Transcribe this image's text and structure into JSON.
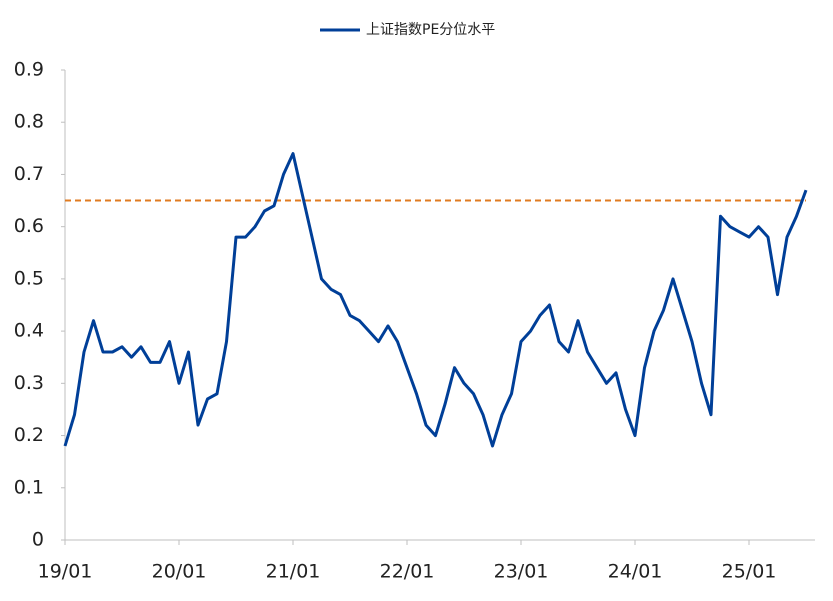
{
  "chart_data": {
    "type": "line",
    "x": [
      "19/01",
      "19/02",
      "19/03",
      "19/04",
      "19/05",
      "19/06",
      "19/07",
      "19/08",
      "19/09",
      "19/10",
      "19/11",
      "19/12",
      "20/01",
      "20/02",
      "20/03",
      "20/04",
      "20/05",
      "20/06",
      "20/07",
      "20/08",
      "20/09",
      "20/10",
      "20/11",
      "20/12",
      "21/01",
      "21/02",
      "21/03",
      "21/04",
      "21/05",
      "21/06",
      "21/07",
      "21/08",
      "21/09",
      "21/10",
      "21/11",
      "21/12",
      "22/01",
      "22/02",
      "22/03",
      "22/04",
      "22/05",
      "22/06",
      "22/07",
      "22/08",
      "22/09",
      "22/10",
      "22/11",
      "22/12",
      "23/01",
      "23/02",
      "23/03",
      "23/04",
      "23/05",
      "23/06",
      "23/07",
      "23/08",
      "23/09",
      "23/10",
      "23/11",
      "23/12",
      "24/01",
      "24/02",
      "24/03",
      "24/04",
      "24/05",
      "24/06",
      "24/07",
      "24/08",
      "24/09",
      "24/10",
      "24/11",
      "24/12",
      "25/01",
      "25/02",
      "25/03",
      "25/04",
      "25/05",
      "25/06",
      "25/07"
    ],
    "series": [
      {
        "name": "上证指数PE分位水平",
        "color": "#003f98",
        "values": [
          0.18,
          0.24,
          0.36,
          0.42,
          0.36,
          0.36,
          0.37,
          0.35,
          0.37,
          0.34,
          0.34,
          0.38,
          0.3,
          0.36,
          0.22,
          0.27,
          0.28,
          0.38,
          0.58,
          0.58,
          0.6,
          0.63,
          0.64,
          0.7,
          0.74,
          0.66,
          0.58,
          0.5,
          0.48,
          0.47,
          0.43,
          0.42,
          0.4,
          0.38,
          0.41,
          0.38,
          0.33,
          0.28,
          0.22,
          0.2,
          0.26,
          0.33,
          0.3,
          0.28,
          0.24,
          0.18,
          0.24,
          0.28,
          0.38,
          0.4,
          0.43,
          0.45,
          0.38,
          0.36,
          0.42,
          0.36,
          0.33,
          0.3,
          0.32,
          0.25,
          0.2,
          0.33,
          0.4,
          0.44,
          0.5,
          0.44,
          0.38,
          0.3,
          0.24,
          0.62,
          0.6,
          0.59,
          0.58,
          0.6,
          0.58,
          0.47,
          0.58,
          0.62,
          0.67
        ]
      }
    ],
    "reference_line": {
      "value": 0.65,
      "color": "#e07b20"
    },
    "ylim": [
      0,
      0.9
    ],
    "yticks": [
      0,
      0.1,
      0.2,
      0.3,
      0.4,
      0.5,
      0.6,
      0.7,
      0.8,
      0.9
    ],
    "xticks": [
      "19/01",
      "20/01",
      "21/01",
      "22/01",
      "23/01",
      "24/01",
      "25/01"
    ],
    "legend": "top"
  }
}
